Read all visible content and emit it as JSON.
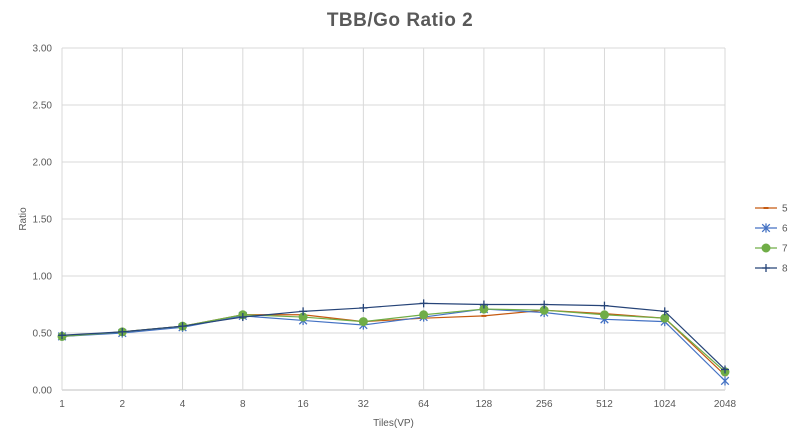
{
  "chart_data": {
    "type": "line",
    "title": "TBB/Go Ratio 2",
    "xlabel": "Tiles(VP)",
    "ylabel": "Ratio",
    "ylim": [
      0,
      3
    ],
    "ytick_labels": [
      "0.00",
      "0.50",
      "1.00",
      "1.50",
      "2.00",
      "2.50",
      "3.00"
    ],
    "categories": [
      "1",
      "2",
      "4",
      "8",
      "16",
      "32",
      "64",
      "128",
      "256",
      "512",
      "1024",
      "2048"
    ],
    "grid": true,
    "legend_position": "right",
    "series": [
      {
        "name": "5",
        "color": "#c55a11",
        "marker": "dash",
        "values": [
          0.47,
          0.51,
          0.56,
          0.66,
          0.66,
          0.6,
          0.63,
          0.65,
          0.7,
          0.67,
          0.63,
          0.13
        ]
      },
      {
        "name": "6",
        "color": "#4472c4",
        "marker": "star",
        "values": [
          0.47,
          0.5,
          0.55,
          0.65,
          0.61,
          0.57,
          0.64,
          0.71,
          0.68,
          0.62,
          0.6,
          0.08
        ]
      },
      {
        "name": "7",
        "color": "#70ad47",
        "marker": "circle",
        "values": [
          0.47,
          0.51,
          0.56,
          0.66,
          0.64,
          0.6,
          0.66,
          0.71,
          0.7,
          0.66,
          0.63,
          0.16
        ]
      },
      {
        "name": "8",
        "color": "#264478",
        "marker": "plus",
        "values": [
          0.48,
          0.51,
          0.56,
          0.64,
          0.69,
          0.72,
          0.76,
          0.75,
          0.75,
          0.74,
          0.69,
          0.18
        ]
      }
    ]
  }
}
